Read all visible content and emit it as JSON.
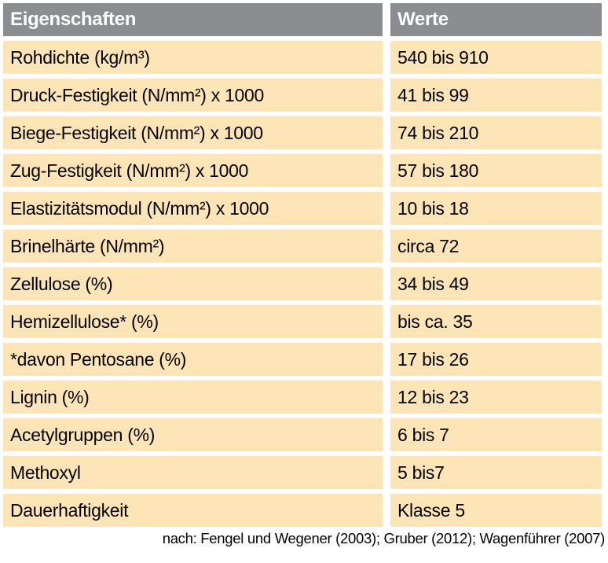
{
  "table": {
    "header": {
      "property": "Eigenschaften",
      "value": "Werte"
    },
    "rows": [
      {
        "property": "Rohdichte (kg/m³)",
        "value": "540 bis 910"
      },
      {
        "property": "Druck-Festigkeit (N/mm²) x 1000",
        "value": "41 bis 99"
      },
      {
        "property": "Biege-Festigkeit (N/mm²) x 1000",
        "value": "74 bis 210"
      },
      {
        "property": "Zug-Festigkeit (N/mm²) x 1000",
        "value": "57 bis 180"
      },
      {
        "property": "Elastizitätsmodul (N/mm²) x 1000",
        "value": "10 bis 18"
      },
      {
        "property": "Brinelhärte (N/mm²)",
        "value": "circa 72"
      },
      {
        "property": "Zellulose (%)",
        "value": "34 bis 49"
      },
      {
        "property": "Hemizellulose* (%)",
        "value": "bis ca. 35"
      },
      {
        "property": "*davon Pentosane (%)",
        "value": "17 bis 26"
      },
      {
        "property": "Lignin (%)",
        "value": "12 bis 23"
      },
      {
        "property": "Acetylgruppen (%)",
        "value": "6 bis 7"
      },
      {
        "property": "Methoxyl",
        "value": "5 bis7"
      },
      {
        "property": "Dauerhaftigkeit",
        "value": "Klasse 5"
      }
    ]
  },
  "footer": {
    "citation": "nach: Fengel und Wegener (2003); Gruber (2012); Wagenführer (2007)"
  },
  "colors": {
    "header_bg": "#8b8d90",
    "header_text": "#ffffff",
    "row_bg": "#fde5b7",
    "row_text": "#000000",
    "page_bg": "#ffffff"
  }
}
